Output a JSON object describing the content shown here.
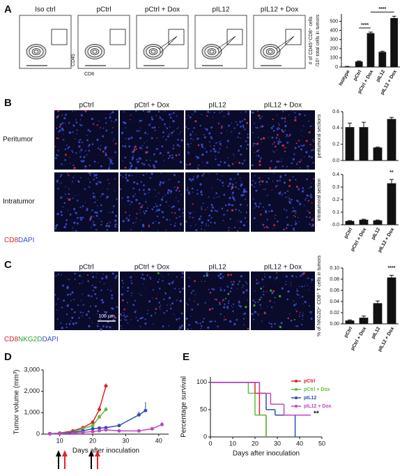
{
  "panel_labels": [
    "A",
    "B",
    "C",
    "D",
    "E"
  ],
  "flow": {
    "titles": [
      "Iso ctrl",
      "pCtrl",
      "pCtrl + Dox",
      "pIL12",
      "pIL12 + Dox"
    ],
    "y_label": "CD45",
    "x_label": "CD8"
  },
  "images": {
    "column_titles": [
      "pCtrl",
      "pCtrl + Dox",
      "pIL12",
      "pIL12 + Dox"
    ],
    "row_labels": [
      "Peritumor",
      "Intratumor"
    ],
    "stain_legend_b": [
      {
        "text": "CD8",
        "color": "#e02020"
      },
      {
        "text": "DAPI",
        "color": "#3050d0"
      }
    ],
    "stain_legend_c": [
      {
        "text": "CD8",
        "color": "#e02020"
      },
      {
        "text": "NKG2D",
        "color": "#30a030"
      },
      {
        "text": "DAPI",
        "color": "#3050d0"
      }
    ],
    "scale_bar": "100 µm"
  },
  "chart_data": [
    {
      "type": "bar",
      "ylabel": [
        "# of CD45⁺CD8⁺ cells",
        "/10⁵ total cells in tumors"
      ],
      "categories": [
        "Isotype",
        "pCtrl",
        "pCtrl + Dox",
        "pIL12",
        "pIL12 + Dox"
      ],
      "values": [
        5,
        60,
        370,
        165,
        535
      ],
      "errors": [
        2,
        6,
        12,
        8,
        20
      ],
      "color": "#111111",
      "ylim": [
        0,
        580
      ],
      "yticks": [
        0,
        100,
        200,
        300,
        400,
        500
      ],
      "annotations": [
        "****",
        "****"
      ]
    },
    {
      "type": "bar",
      "ylabel": [
        "CD8⁺T/DAPI in",
        "peritumoral sections"
      ],
      "values": [
        0.41,
        0.41,
        0.16,
        0.51
      ],
      "errors": [
        0.05,
        0.06,
        0.005,
        0.02
      ],
      "color": "#111111",
      "ylim": [
        0,
        0.6
      ],
      "yticks": [
        {
          "value": 0,
          "label": "0.0"
        },
        0.2,
        0.4,
        0.6
      ]
    },
    {
      "type": "bar",
      "ylabel": [
        "CD8⁺T/DAPI in",
        "intratumoral section"
      ],
      "categories": [
        "pCtrl",
        "pCtrl + Dox",
        "pIL12",
        "pIL12 + Dox"
      ],
      "values": [
        0.03,
        0.04,
        0.035,
        0.33
      ],
      "errors": [
        0.003,
        0.004,
        0.003,
        0.03
      ],
      "color": "#111111",
      "ylim": [
        0,
        0.4
      ],
      "yticks": [
        {
          "value": 0,
          "label": "0.0"
        },
        0.1,
        0.2,
        0.3,
        0.4
      ],
      "annotations": [
        "**"
      ]
    },
    {
      "type": "bar",
      "ylabel": [
        "% of NKG2D⁺ CD8⁺ T cells in tumors"
      ],
      "categories": [
        "pCtrl",
        "pCtrl + Dox",
        "pIL12",
        "pIL12 + Dox"
      ],
      "values": [
        0.006,
        0.011,
        0.037,
        0.083
      ],
      "errors": [
        0.001,
        0.003,
        0.004,
        0.004
      ],
      "color": "#111111",
      "ylim": [
        0,
        0.1
      ],
      "yticks": [
        {
          "value": 0,
          "label": "0.00"
        },
        0.02,
        0.04,
        0.06,
        0.08,
        {
          "value": 0.1,
          "label": "0.10"
        }
      ],
      "annotations": [
        "****"
      ]
    },
    {
      "type": "line",
      "ylabel": "Tumor volume (mm³)",
      "xlabel": "Days after inoculation",
      "xlim": [
        5,
        43
      ],
      "xticks": [
        10,
        20,
        30,
        40
      ],
      "ylim": [
        0,
        3000
      ],
      "yticks": [
        0,
        {
          "value": 1000,
          "label": "1,000"
        },
        {
          "value": 2000,
          "label": "2,000"
        },
        {
          "value": 3000,
          "label": "3,000"
        }
      ],
      "series": [
        {
          "name": "pCtrl",
          "color": "#e32228",
          "x": [
            7,
            10,
            14,
            17,
            20,
            22,
            24
          ],
          "values": [
            20,
            50,
            150,
            300,
            550,
            1150,
            2250
          ],
          "errors": [
            5,
            10,
            30,
            50,
            100,
            150,
            120
          ]
        },
        {
          "name": "pCtrl + Dox",
          "color": "#5cbf3a",
          "x": [
            7,
            10,
            14,
            17,
            20,
            22,
            24
          ],
          "values": [
            20,
            40,
            100,
            250,
            400,
            800,
            1150
          ],
          "errors": [
            5,
            10,
            20,
            40,
            80,
            120,
            120
          ]
        },
        {
          "name": "pIL12",
          "color": "#2b4fb6",
          "x": [
            7,
            10,
            14,
            17,
            20,
            22,
            24,
            28,
            34,
            36
          ],
          "values": [
            20,
            30,
            80,
            150,
            250,
            280,
            300,
            400,
            900,
            1100
          ],
          "errors": [
            5,
            5,
            15,
            30,
            40,
            50,
            50,
            80,
            150,
            400
          ]
        },
        {
          "name": "pIL12 + Dox",
          "color": "#c444c4",
          "x": [
            7,
            10,
            14,
            17,
            20,
            22,
            24,
            28,
            34,
            38,
            41
          ],
          "values": [
            10,
            20,
            40,
            80,
            120,
            160,
            200,
            150,
            150,
            250,
            450
          ],
          "errors": [
            3,
            5,
            10,
            15,
            20,
            30,
            30,
            30,
            40,
            60,
            120
          ]
        }
      ]
    },
    {
      "type": "survival",
      "ylabel": "Percentage survival",
      "xlabel": "Days after inoculation",
      "xlim": [
        0,
        50
      ],
      "xticks": [
        0,
        10,
        20,
        30,
        40,
        50
      ],
      "ylim": [
        0,
        110
      ],
      "yticks": [
        0,
        50,
        100
      ],
      "annotations": [
        "**"
      ],
      "series": [
        {
          "name": "pCtrl",
          "color": "#e32228",
          "x": [
            0,
            20,
            22,
            25
          ],
          "values": [
            100,
            80,
            40,
            0
          ]
        },
        {
          "name": "pCtrl + Dox",
          "color": "#5cbf3a",
          "x": [
            0,
            17,
            20,
            25
          ],
          "values": [
            100,
            80,
            40,
            0
          ]
        },
        {
          "name": "pIL12",
          "color": "#2b4fb6",
          "x": [
            0,
            22,
            25,
            29,
            38
          ],
          "values": [
            100,
            80,
            50,
            40,
            0
          ]
        },
        {
          "name": "pIL12 + Dox",
          "color": "#c444c4",
          "x": [
            0,
            22,
            27,
            33,
            45
          ],
          "values": [
            100,
            80,
            60,
            40,
            40
          ]
        }
      ]
    }
  ]
}
